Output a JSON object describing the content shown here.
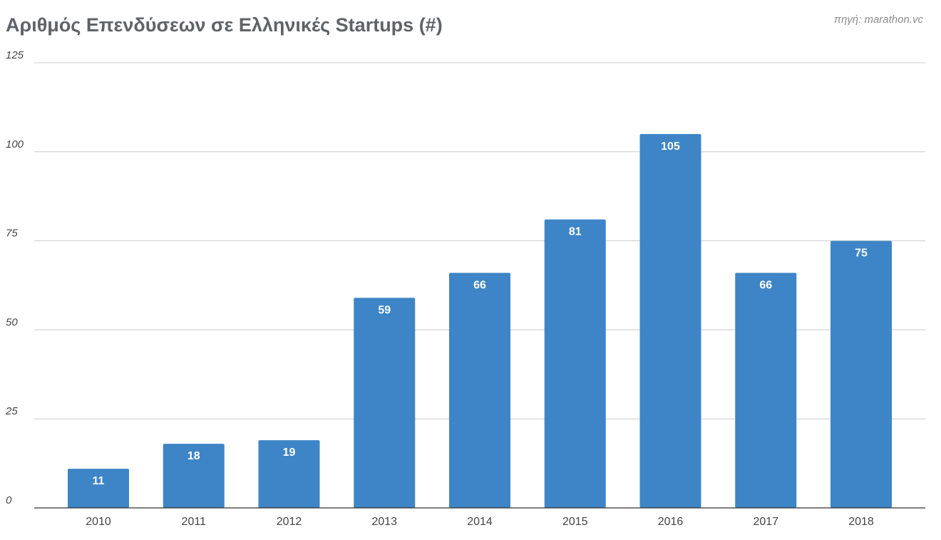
{
  "source_note": "πηγή: marathon.vc",
  "chart_data": {
    "type": "bar",
    "title": "Αριθμός Επενδύσεων σε Ελληνικές Startups (#)",
    "xlabel": "",
    "ylabel": "",
    "categories": [
      "2010",
      "2011",
      "2012",
      "2013",
      "2014",
      "2015",
      "2016",
      "2017",
      "2018"
    ],
    "values": [
      11,
      18,
      19,
      59,
      66,
      81,
      105,
      66,
      75
    ],
    "data_labels": [
      "11",
      "18",
      "19",
      "59",
      "66",
      "81",
      "105",
      "66",
      "75"
    ],
    "ylim": [
      0,
      125
    ],
    "yticks": [
      "0",
      "25",
      "50",
      "75",
      "100",
      "125"
    ],
    "grid": true,
    "legend": "none",
    "colors": {
      "bar": "#3d85c6",
      "grid": "#cccccc",
      "axis": "#333333",
      "label": "#ffffff",
      "tick": "#444444"
    }
  }
}
